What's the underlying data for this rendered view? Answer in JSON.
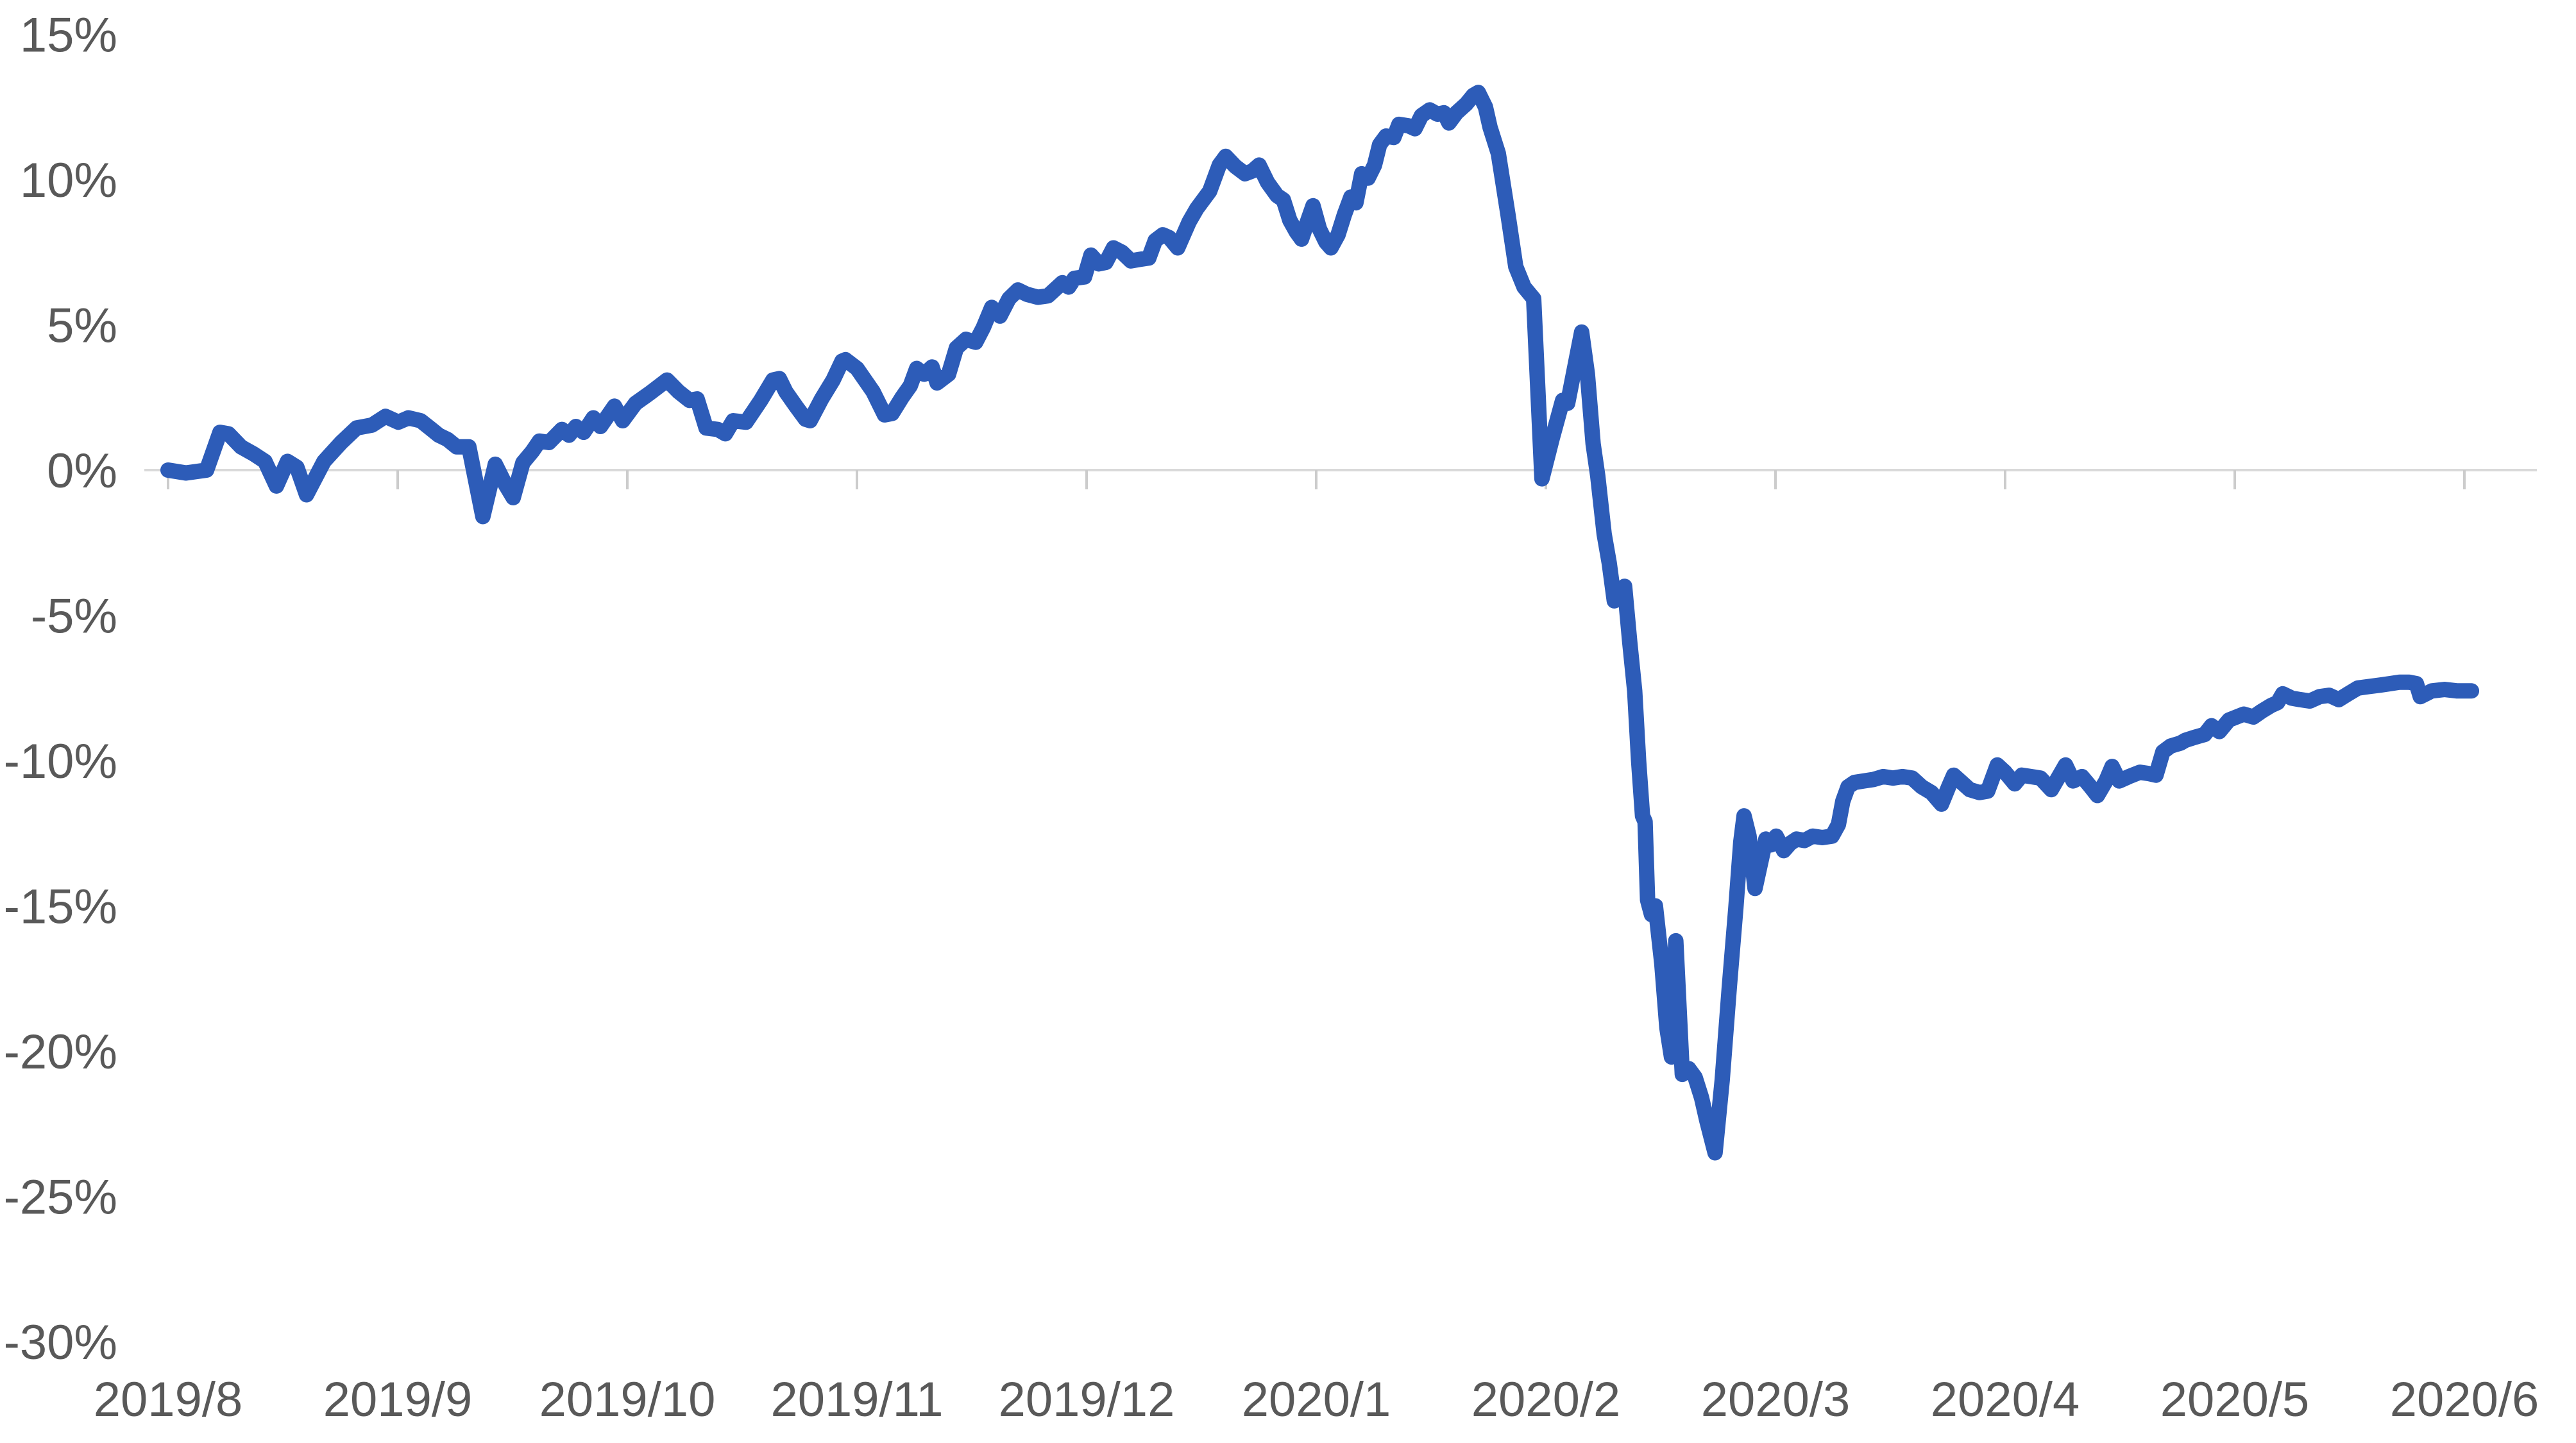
{
  "chart_data": {
    "type": "line",
    "title": "",
    "xlabel": "",
    "ylabel": "",
    "legend": {
      "visible": false
    },
    "grid": {
      "horizontal": false,
      "vertical": false,
      "zero_axis_line": true
    },
    "x_axis": {
      "kind": "date-category",
      "tick_labels": [
        "2019/8",
        "2019/9",
        "2019/10",
        "2019/11",
        "2019/12",
        "2020/1",
        "2020/2",
        "2020/3",
        "2020/4",
        "2020/5",
        "2020/6"
      ]
    },
    "y_axis": {
      "format": "percent",
      "min": -30,
      "max": 15,
      "step": 5,
      "tick_labels": [
        "15%",
        "10%",
        "5%",
        "0%",
        "-5%",
        "-10%",
        "-15%",
        "-20%",
        "-25%",
        "-30%"
      ],
      "tick_values": [
        15,
        10,
        5,
        0,
        -5,
        -10,
        -15,
        -20,
        -25,
        -30
      ]
    },
    "series": [
      {
        "name": "",
        "color": "#2d5cb8",
        "points": [
          [
            0.0,
            0.0
          ],
          [
            0.078,
            -0.1
          ],
          [
            0.168,
            0.0
          ],
          [
            0.226,
            1.3
          ],
          [
            0.263,
            1.25
          ],
          [
            0.318,
            0.8
          ],
          [
            0.374,
            0.55
          ],
          [
            0.422,
            0.3
          ],
          [
            0.472,
            -0.55
          ],
          [
            0.52,
            0.3
          ],
          [
            0.561,
            0.1
          ],
          [
            0.603,
            -0.85
          ],
          [
            0.679,
            0.3
          ],
          [
            0.754,
            0.95
          ],
          [
            0.821,
            1.45
          ],
          [
            0.888,
            1.55
          ],
          [
            0.947,
            1.85
          ],
          [
            1.003,
            1.65
          ],
          [
            1.047,
            1.8
          ],
          [
            1.1,
            1.7
          ],
          [
            1.14,
            1.45
          ],
          [
            1.179,
            1.2
          ],
          [
            1.218,
            1.05
          ],
          [
            1.257,
            0.8
          ],
          [
            1.31,
            0.8
          ],
          [
            1.371,
            -1.6
          ],
          [
            1.425,
            0.2
          ],
          [
            1.469,
            -0.5
          ],
          [
            1.503,
            -0.95
          ],
          [
            1.545,
            0.25
          ],
          [
            1.587,
            0.65
          ],
          [
            1.617,
            1.0
          ],
          [
            1.659,
            0.95
          ],
          [
            1.715,
            1.4
          ],
          [
            1.746,
            1.2
          ],
          [
            1.776,
            1.5
          ],
          [
            1.81,
            1.3
          ],
          [
            1.852,
            1.8
          ],
          [
            1.883,
            1.5
          ],
          [
            1.944,
            2.2
          ],
          [
            1.98,
            1.7
          ],
          [
            2.036,
            2.3
          ],
          [
            2.098,
            2.65
          ],
          [
            2.173,
            3.1
          ],
          [
            2.223,
            2.7
          ],
          [
            2.271,
            2.4
          ],
          [
            2.304,
            2.45
          ],
          [
            2.343,
            1.45
          ],
          [
            2.394,
            1.4
          ],
          [
            2.427,
            1.25
          ],
          [
            2.461,
            1.7
          ],
          [
            2.517,
            1.65
          ],
          [
            2.581,
            2.4
          ],
          [
            2.634,
            3.1
          ],
          [
            2.662,
            3.15
          ],
          [
            2.69,
            2.7
          ],
          [
            2.734,
            2.2
          ],
          [
            2.776,
            1.75
          ],
          [
            2.796,
            1.7
          ],
          [
            2.846,
            2.45
          ],
          [
            2.896,
            3.1
          ],
          [
            2.935,
            3.75
          ],
          [
            2.95,
            3.8
          ],
          [
            3.0,
            3.5
          ],
          [
            3.07,
            2.7
          ],
          [
            3.12,
            1.9
          ],
          [
            3.153,
            1.95
          ],
          [
            3.196,
            2.5
          ],
          [
            3.232,
            2.9
          ],
          [
            3.26,
            3.5
          ],
          [
            3.293,
            3.3
          ],
          [
            3.327,
            3.55
          ],
          [
            3.349,
            3.0
          ],
          [
            3.399,
            3.3
          ],
          [
            3.433,
            4.2
          ],
          [
            3.475,
            4.5
          ],
          [
            3.517,
            4.4
          ],
          [
            3.55,
            4.9
          ],
          [
            3.587,
            5.6
          ],
          [
            3.623,
            5.3
          ],
          [
            3.662,
            5.9
          ],
          [
            3.701,
            6.2
          ],
          [
            3.74,
            6.05
          ],
          [
            3.788,
            5.95
          ],
          [
            3.832,
            6.0
          ],
          [
            3.894,
            6.45
          ],
          [
            3.922,
            6.3
          ],
          [
            3.947,
            6.6
          ],
          [
            3.991,
            6.65
          ],
          [
            4.019,
            7.4
          ],
          [
            4.053,
            7.1
          ],
          [
            4.084,
            7.15
          ],
          [
            4.117,
            7.65
          ],
          [
            4.154,
            7.5
          ],
          [
            4.193,
            7.2
          ],
          [
            4.229,
            7.25
          ],
          [
            4.271,
            7.3
          ],
          [
            4.299,
            7.9
          ],
          [
            4.332,
            8.1
          ],
          [
            4.36,
            8.0
          ],
          [
            4.397,
            7.65
          ],
          [
            4.447,
            8.55
          ],
          [
            4.48,
            9.0
          ],
          [
            4.536,
            9.6
          ],
          [
            4.578,
            10.5
          ],
          [
            4.606,
            10.8
          ],
          [
            4.648,
            10.45
          ],
          [
            4.69,
            10.2
          ],
          [
            4.723,
            10.3
          ],
          [
            4.751,
            10.5
          ],
          [
            4.788,
            9.9
          ],
          [
            4.829,
            9.45
          ],
          [
            4.857,
            9.3
          ],
          [
            4.885,
            8.6
          ],
          [
            4.913,
            8.2
          ],
          [
            4.936,
            7.95
          ],
          [
            4.964,
            8.6
          ],
          [
            4.986,
            9.1
          ],
          [
            5.014,
            8.3
          ],
          [
            5.042,
            7.85
          ],
          [
            5.064,
            7.65
          ],
          [
            5.095,
            8.1
          ],
          [
            5.123,
            8.8
          ],
          [
            5.151,
            9.4
          ],
          [
            5.173,
            9.2
          ],
          [
            5.198,
            10.2
          ],
          [
            5.226,
            10.05
          ],
          [
            5.254,
            10.5
          ],
          [
            5.276,
            11.2
          ],
          [
            5.304,
            11.5
          ],
          [
            5.338,
            11.45
          ],
          [
            5.36,
            11.9
          ],
          [
            5.402,
            11.85
          ],
          [
            5.43,
            11.75
          ],
          [
            5.458,
            12.2
          ],
          [
            5.494,
            12.4
          ],
          [
            5.528,
            12.25
          ],
          [
            5.556,
            12.3
          ],
          [
            5.578,
            11.95
          ],
          [
            5.611,
            12.3
          ],
          [
            5.653,
            12.6
          ],
          [
            5.684,
            12.9
          ],
          [
            5.706,
            13.0
          ],
          [
            5.737,
            12.5
          ],
          [
            5.757,
            11.8
          ],
          [
            5.793,
            10.9
          ],
          [
            5.835,
            8.8
          ],
          [
            5.869,
            7.0
          ],
          [
            5.905,
            6.3
          ],
          [
            5.947,
            5.9
          ],
          [
            5.983,
            -0.3
          ],
          [
            6.028,
            1.1
          ],
          [
            6.073,
            2.4
          ],
          [
            6.095,
            2.3
          ],
          [
            6.156,
            4.75
          ],
          [
            6.181,
            3.3
          ],
          [
            6.206,
            0.9
          ],
          [
            6.226,
            -0.2
          ],
          [
            6.254,
            -2.2
          ],
          [
            6.276,
            -3.2
          ],
          [
            6.298,
            -4.5
          ],
          [
            6.32,
            -4.3
          ],
          [
            6.343,
            -4.0
          ],
          [
            6.365,
            -5.9
          ],
          [
            6.387,
            -7.6
          ],
          [
            6.404,
            -10.0
          ],
          [
            6.421,
            -11.9
          ],
          [
            6.432,
            -12.1
          ],
          [
            6.443,
            -14.8
          ],
          [
            6.46,
            -15.3
          ],
          [
            6.477,
            -15.0
          ],
          [
            6.505,
            -17.0
          ],
          [
            6.527,
            -19.2
          ],
          [
            6.547,
            -20.2
          ],
          [
            6.566,
            -16.2
          ],
          [
            6.594,
            -20.8
          ],
          [
            6.622,
            -20.6
          ],
          [
            6.65,
            -20.9
          ],
          [
            6.678,
            -21.6
          ],
          [
            6.701,
            -22.4
          ],
          [
            6.737,
            -23.5
          ],
          [
            6.768,
            -21.0
          ],
          [
            6.799,
            -17.8
          ],
          [
            6.827,
            -15.1
          ],
          [
            6.849,
            -12.8
          ],
          [
            6.863,
            -11.9
          ],
          [
            6.885,
            -12.6
          ],
          [
            6.911,
            -14.4
          ],
          [
            6.933,
            -13.6
          ],
          [
            6.958,
            -12.7
          ],
          [
            6.98,
            -12.9
          ],
          [
            7.003,
            -12.6
          ],
          [
            7.036,
            -13.1
          ],
          [
            7.064,
            -12.85
          ],
          [
            7.092,
            -12.7
          ],
          [
            7.126,
            -12.75
          ],
          [
            7.162,
            -12.6
          ],
          [
            7.204,
            -12.65
          ],
          [
            7.246,
            -12.6
          ],
          [
            7.274,
            -12.2
          ],
          [
            7.293,
            -11.4
          ],
          [
            7.316,
            -10.9
          ],
          [
            7.344,
            -10.75
          ],
          [
            7.385,
            -10.7
          ],
          [
            7.427,
            -10.65
          ],
          [
            7.469,
            -10.55
          ],
          [
            7.511,
            -10.6
          ],
          [
            7.553,
            -10.55
          ],
          [
            7.595,
            -10.6
          ],
          [
            7.637,
            -10.9
          ],
          [
            7.679,
            -11.1
          ],
          [
            7.723,
            -11.5
          ],
          [
            7.754,
            -10.9
          ],
          [
            7.776,
            -10.5
          ],
          [
            7.804,
            -10.7
          ],
          [
            7.846,
            -11.0
          ],
          [
            7.888,
            -11.1
          ],
          [
            7.924,
            -11.05
          ],
          [
            7.966,
            -10.15
          ],
          [
            8.0,
            -10.4
          ],
          [
            8.042,
            -10.8
          ],
          [
            8.073,
            -10.5
          ],
          [
            8.112,
            -10.55
          ],
          [
            8.154,
            -10.6
          ],
          [
            8.201,
            -11.0
          ],
          [
            8.263,
            -10.15
          ],
          [
            8.296,
            -10.7
          ],
          [
            8.335,
            -10.55
          ],
          [
            8.372,
            -10.9
          ],
          [
            8.402,
            -11.2
          ],
          [
            8.439,
            -10.7
          ],
          [
            8.466,
            -10.2
          ],
          [
            8.497,
            -10.7
          ],
          [
            8.539,
            -10.55
          ],
          [
            8.587,
            -10.4
          ],
          [
            8.629,
            -10.45
          ],
          [
            8.657,
            -10.5
          ],
          [
            8.687,
            -9.7
          ],
          [
            8.721,
            -9.5
          ],
          [
            8.763,
            -9.4
          ],
          [
            8.785,
            -9.3
          ],
          [
            8.824,
            -9.2
          ],
          [
            8.869,
            -9.1
          ],
          [
            8.899,
            -8.8
          ],
          [
            8.933,
            -9.0
          ],
          [
            8.975,
            -8.6
          ],
          [
            9.039,
            -8.4
          ],
          [
            9.081,
            -8.5
          ],
          [
            9.117,
            -8.3
          ],
          [
            9.159,
            -8.1
          ],
          [
            9.187,
            -8.0
          ],
          [
            9.209,
            -7.7
          ],
          [
            9.248,
            -7.85
          ],
          [
            9.285,
            -7.9
          ],
          [
            9.327,
            -7.95
          ],
          [
            9.369,
            -7.8
          ],
          [
            9.411,
            -7.75
          ],
          [
            9.453,
            -7.9
          ],
          [
            9.494,
            -7.7
          ],
          [
            9.536,
            -7.5
          ],
          [
            9.584,
            -7.45
          ],
          [
            9.634,
            -7.4
          ],
          [
            9.676,
            -7.35
          ],
          [
            9.718,
            -7.3
          ],
          [
            9.76,
            -7.3
          ],
          [
            9.791,
            -7.35
          ],
          [
            9.808,
            -7.8
          ],
          [
            9.858,
            -7.6
          ],
          [
            9.914,
            -7.55
          ],
          [
            9.969,
            -7.6
          ],
          [
            10.031,
            -7.6
          ]
        ]
      }
    ]
  },
  "colors": {
    "line": "#2d5cb8",
    "axis_line": "#d9d9d9",
    "tick_mark": "#cccccc",
    "label_text": "#595959",
    "background": "#ffffff"
  }
}
